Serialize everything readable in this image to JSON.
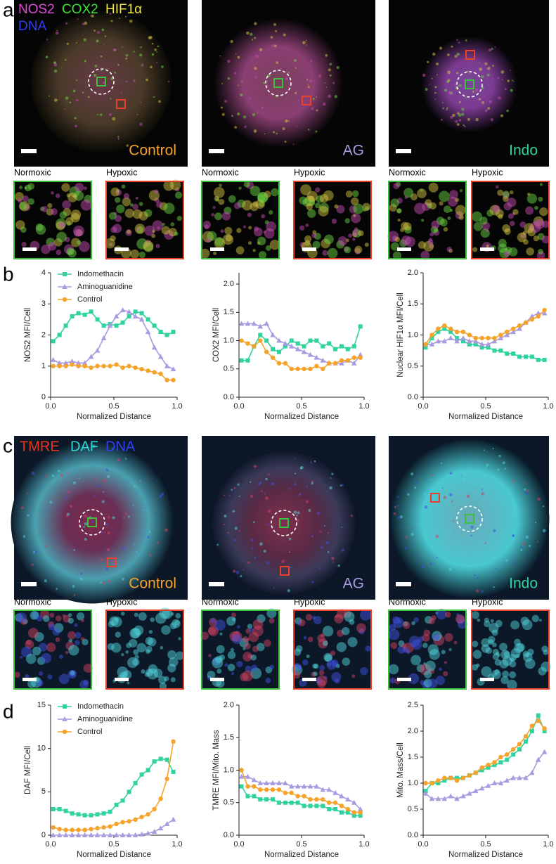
{
  "figure": {
    "panel_labels": [
      "a",
      "b",
      "c",
      "d"
    ],
    "row_a": {
      "stains": [
        {
          "text": "NOS2",
          "color": "#e04bd8"
        },
        {
          "text": "COX2",
          "color": "#3ee03a"
        },
        {
          "text": "HIF1α",
          "color": "#f2e93a"
        },
        {
          "text": "DNA",
          "color": "#2f3ff5"
        }
      ],
      "conditions": [
        {
          "text": "Control",
          "color": "#f5a32a"
        },
        {
          "text": "AG",
          "color": "#a99be0"
        },
        {
          "text": "Indo",
          "color": "#2fd3a0"
        }
      ],
      "insets": [
        "Normoxic",
        "Hypoxic"
      ]
    },
    "row_c": {
      "stains": [
        {
          "text": "TMRE",
          "color": "#e8341f"
        },
        {
          "text": "DAF",
          "color": "#2fd8d8"
        },
        {
          "text": "DNA",
          "color": "#2f3ff5"
        }
      ],
      "conditions": [
        {
          "text": "Control",
          "color": "#f5a32a"
        },
        {
          "text": "AG",
          "color": "#a99be0"
        },
        {
          "text": "Indo",
          "color": "#2fd3a0"
        }
      ],
      "insets": [
        "Normoxic",
        "Hypoxic"
      ]
    }
  },
  "chart_data": [
    {
      "type": "line",
      "ylabel": "NOS2 MFI/Cell",
      "xlabel": "Normalized Distance",
      "xlim": [
        0,
        1
      ],
      "xticks": [
        {
          "value": 0,
          "label": "0.0"
        },
        {
          "value": 0.5,
          "label": "0.5"
        },
        {
          "value": 1,
          "label": "1.0"
        }
      ],
      "ylim": [
        0,
        4
      ],
      "yticks": [
        0,
        1,
        2,
        3,
        4
      ],
      "legend": "top-left",
      "x": [
        0.02,
        0.07,
        0.12,
        0.17,
        0.22,
        0.27,
        0.32,
        0.37,
        0.42,
        0.47,
        0.52,
        0.57,
        0.62,
        0.67,
        0.72,
        0.77,
        0.82,
        0.87,
        0.92,
        0.97
      ],
      "series": [
        {
          "name": "Indomethacin",
          "color": "#2fd3a0",
          "marker": "square",
          "values": [
            1.8,
            2.0,
            2.3,
            2.6,
            2.7,
            2.65,
            2.75,
            2.5,
            2.3,
            2.35,
            2.3,
            2.4,
            2.6,
            2.75,
            2.7,
            2.5,
            2.3,
            2.1,
            2.0,
            2.1
          ]
        },
        {
          "name": "Aminoguanidine",
          "color": "#a99be0",
          "marker": "triangle",
          "values": [
            1.2,
            1.1,
            1.1,
            1.15,
            1.1,
            1.1,
            1.3,
            1.5,
            1.9,
            2.3,
            2.6,
            2.8,
            2.75,
            2.6,
            2.5,
            2.1,
            1.6,
            1.3,
            1.0,
            0.9
          ]
        },
        {
          "name": "Control",
          "color": "#f5a32a",
          "marker": "circle",
          "values": [
            1.0,
            1.0,
            1.0,
            1.05,
            1.0,
            1.0,
            0.95,
            1.0,
            1.0,
            1.0,
            1.05,
            0.95,
            1.0,
            0.95,
            0.9,
            0.85,
            0.8,
            0.75,
            0.55,
            0.55
          ]
        }
      ]
    },
    {
      "type": "line",
      "ylabel": "COX2 MFI/Cell",
      "xlabel": "Normalized Distance",
      "xlim": [
        0,
        1
      ],
      "xticks": [
        {
          "value": 0,
          "label": "0.0"
        },
        {
          "value": 0.5,
          "label": "0.5"
        },
        {
          "value": 1,
          "label": "1.0"
        }
      ],
      "ylim": [
        0,
        2.2
      ],
      "yticks": [
        {
          "value": 0,
          "label": "0.0"
        },
        {
          "value": 0.5,
          "label": "0.5"
        },
        {
          "value": 1,
          "label": "1.0"
        },
        {
          "value": 1.5,
          "label": "1.5"
        },
        {
          "value": 2,
          "label": "2.0"
        }
      ],
      "x": [
        0.02,
        0.07,
        0.12,
        0.17,
        0.22,
        0.27,
        0.32,
        0.37,
        0.42,
        0.47,
        0.52,
        0.57,
        0.62,
        0.67,
        0.72,
        0.77,
        0.82,
        0.87,
        0.92,
        0.97
      ],
      "series": [
        {
          "color": "#2fd3a0",
          "marker": "square",
          "values": [
            0.65,
            0.65,
            0.9,
            1.1,
            1.0,
            0.85,
            0.8,
            0.9,
            1.0,
            0.95,
            0.9,
            1.0,
            1.0,
            0.9,
            0.95,
            0.85,
            0.9,
            0.85,
            0.9,
            1.25
          ]
        },
        {
          "color": "#a99be0",
          "marker": "triangle",
          "values": [
            1.3,
            1.3,
            1.3,
            1.25,
            1.3,
            1.1,
            1.0,
            0.95,
            0.9,
            0.85,
            0.8,
            0.75,
            0.7,
            0.65,
            0.6,
            0.6,
            0.6,
            0.65,
            0.6,
            0.75
          ]
        },
        {
          "color": "#f5a32a",
          "marker": "circle",
          "values": [
            1.0,
            0.95,
            0.9,
            1.0,
            0.8,
            0.7,
            0.6,
            0.6,
            0.5,
            0.5,
            0.5,
            0.5,
            0.55,
            0.5,
            0.6,
            0.6,
            0.65,
            0.65,
            0.7,
            0.7
          ]
        }
      ]
    },
    {
      "type": "line",
      "ylabel": "Nuclear HIF1α MFI/Cell",
      "xlabel": "Normalized Distance",
      "xlim": [
        0,
        1
      ],
      "xticks": [
        {
          "value": 0,
          "label": "0.0"
        },
        {
          "value": 0.5,
          "label": "0.5"
        },
        {
          "value": 1,
          "label": "1.0"
        }
      ],
      "ylim": [
        0,
        2
      ],
      "yticks": [
        {
          "value": 0,
          "label": "0.0"
        },
        {
          "value": 0.5,
          "label": "0.5"
        },
        {
          "value": 1,
          "label": "1.0"
        },
        {
          "value": 1.5,
          "label": "1.5"
        },
        {
          "value": 2,
          "label": "2.0"
        }
      ],
      "x": [
        0.02,
        0.07,
        0.12,
        0.17,
        0.22,
        0.27,
        0.32,
        0.37,
        0.42,
        0.47,
        0.52,
        0.57,
        0.62,
        0.67,
        0.72,
        0.77,
        0.82,
        0.87,
        0.92,
        0.97
      ],
      "series": [
        {
          "color": "#2fd3a0",
          "marker": "square",
          "values": [
            0.8,
            0.95,
            1.05,
            1.1,
            1.05,
            0.95,
            0.9,
            0.85,
            0.85,
            0.8,
            0.8,
            0.75,
            0.75,
            0.7,
            0.7,
            0.65,
            0.65,
            0.65,
            0.6,
            0.6
          ]
        },
        {
          "color": "#a99be0",
          "marker": "triangle",
          "values": [
            0.85,
            0.85,
            0.9,
            0.9,
            0.95,
            0.9,
            0.95,
            0.9,
            0.9,
            0.85,
            0.85,
            0.9,
            0.95,
            1.0,
            1.05,
            1.1,
            1.2,
            1.3,
            1.35,
            1.35
          ]
        },
        {
          "color": "#f5a32a",
          "marker": "circle",
          "values": [
            0.85,
            1.0,
            1.1,
            1.15,
            1.1,
            1.05,
            1.05,
            1.0,
            0.95,
            0.95,
            0.95,
            0.95,
            1.0,
            1.05,
            1.1,
            1.15,
            1.2,
            1.25,
            1.3,
            1.4
          ]
        }
      ]
    },
    {
      "type": "line",
      "ylabel": "DAF MFI/Cell",
      "xlabel": "Normalized Distance",
      "xlim": [
        0,
        1
      ],
      "xticks": [
        {
          "value": 0,
          "label": "0.0"
        },
        {
          "value": 0.5,
          "label": "0.5"
        },
        {
          "value": 1,
          "label": "1.0"
        }
      ],
      "ylim": [
        0,
        15
      ],
      "yticks": [
        0,
        5,
        10,
        15
      ],
      "legend": "top-left",
      "x": [
        0.02,
        0.07,
        0.12,
        0.17,
        0.22,
        0.27,
        0.32,
        0.37,
        0.42,
        0.47,
        0.52,
        0.57,
        0.62,
        0.67,
        0.72,
        0.77,
        0.82,
        0.87,
        0.92,
        0.97
      ],
      "series": [
        {
          "name": "Indomethacin",
          "color": "#2fd3a0",
          "marker": "square",
          "values": [
            3.0,
            3.0,
            2.8,
            2.5,
            2.4,
            2.3,
            2.3,
            2.4,
            2.5,
            2.7,
            3.5,
            4.0,
            5.0,
            6.0,
            7.0,
            7.5,
            8.5,
            8.8,
            8.7,
            7.3
          ]
        },
        {
          "name": "Aminoguanidine",
          "color": "#a99be0",
          "marker": "triangle",
          "values": [
            0,
            0,
            0,
            0,
            0,
            0,
            0,
            0,
            0,
            0,
            0,
            0,
            0,
            0,
            0.1,
            0.2,
            0.4,
            0.8,
            1.3,
            1.8
          ]
        },
        {
          "name": "Control",
          "color": "#f5a32a",
          "marker": "circle",
          "values": [
            0.9,
            0.7,
            0.6,
            0.6,
            0.6,
            0.6,
            0.7,
            0.8,
            0.9,
            1.0,
            1.3,
            1.5,
            1.6,
            1.8,
            2.1,
            2.4,
            3.0,
            4.2,
            6.5,
            10.8
          ]
        }
      ]
    },
    {
      "type": "line",
      "ylabel": "TMRE MFI/Mito. Mass",
      "xlabel": "Normalized Distance",
      "xlim": [
        0,
        1
      ],
      "xticks": [
        {
          "value": 0,
          "label": "0.0"
        },
        {
          "value": 0.5,
          "label": "0.5"
        },
        {
          "value": 1,
          "label": "1.0"
        }
      ],
      "ylim": [
        0,
        2
      ],
      "yticks": [
        {
          "value": 0,
          "label": "0.0"
        },
        {
          "value": 0.5,
          "label": "0.5"
        },
        {
          "value": 1,
          "label": "1.0"
        },
        {
          "value": 1.5,
          "label": "1.5"
        },
        {
          "value": 2,
          "label": "2.0"
        }
      ],
      "x": [
        0.02,
        0.07,
        0.12,
        0.17,
        0.22,
        0.27,
        0.32,
        0.37,
        0.42,
        0.47,
        0.52,
        0.57,
        0.62,
        0.67,
        0.72,
        0.77,
        0.82,
        0.87,
        0.92,
        0.97
      ],
      "series": [
        {
          "color": "#2fd3a0",
          "marker": "square",
          "values": [
            0.75,
            0.6,
            0.6,
            0.55,
            0.55,
            0.55,
            0.5,
            0.5,
            0.5,
            0.5,
            0.45,
            0.45,
            0.45,
            0.45,
            0.4,
            0.4,
            0.35,
            0.35,
            0.3,
            0.3
          ]
        },
        {
          "color": "#a99be0",
          "marker": "triangle",
          "values": [
            0.9,
            0.9,
            0.85,
            0.8,
            0.8,
            0.8,
            0.8,
            0.8,
            0.75,
            0.75,
            0.75,
            0.75,
            0.75,
            0.7,
            0.7,
            0.65,
            0.6,
            0.55,
            0.5,
            0.4
          ]
        },
        {
          "color": "#f5a32a",
          "marker": "circle",
          "values": [
            1.0,
            0.75,
            0.75,
            0.7,
            0.7,
            0.7,
            0.7,
            0.65,
            0.65,
            0.6,
            0.6,
            0.55,
            0.55,
            0.55,
            0.5,
            0.5,
            0.45,
            0.4,
            0.35,
            0.35
          ]
        }
      ]
    },
    {
      "type": "line",
      "ylabel": "Mito. Mass/Cell",
      "xlabel": "Normalized Distance",
      "xlim": [
        0,
        1
      ],
      "xticks": [
        {
          "value": 0,
          "label": "0.0"
        },
        {
          "value": 0.5,
          "label": "0.5"
        },
        {
          "value": 1,
          "label": "1.0"
        }
      ],
      "ylim": [
        0,
        2.5
      ],
      "yticks": [
        {
          "value": 0,
          "label": "0.0"
        },
        {
          "value": 0.5,
          "label": "0.5"
        },
        {
          "value": 1,
          "label": "1.0"
        },
        {
          "value": 1.5,
          "label": "1.5"
        },
        {
          "value": 2,
          "label": "2.0"
        },
        {
          "value": 2.5,
          "label": "2.5"
        }
      ],
      "x": [
        0.02,
        0.07,
        0.12,
        0.17,
        0.22,
        0.27,
        0.32,
        0.37,
        0.42,
        0.47,
        0.52,
        0.57,
        0.62,
        0.67,
        0.72,
        0.77,
        0.82,
        0.87,
        0.92,
        0.97
      ],
      "series": [
        {
          "color": "#2fd3a0",
          "marker": "square",
          "values": [
            0.85,
            1.0,
            1.0,
            1.05,
            1.1,
            1.1,
            1.1,
            1.15,
            1.2,
            1.25,
            1.3,
            1.35,
            1.4,
            1.45,
            1.55,
            1.65,
            1.8,
            2.0,
            2.3,
            2.0
          ]
        },
        {
          "color": "#a99be0",
          "marker": "triangle",
          "values": [
            0.8,
            0.7,
            0.7,
            0.7,
            0.75,
            0.7,
            0.75,
            0.8,
            0.85,
            0.9,
            0.95,
            1.0,
            1.0,
            1.05,
            1.1,
            1.1,
            1.1,
            1.2,
            1.45,
            1.6
          ]
        },
        {
          "color": "#f5a32a",
          "marker": "circle",
          "values": [
            1.0,
            1.0,
            1.05,
            1.1,
            1.1,
            1.05,
            1.1,
            1.15,
            1.2,
            1.3,
            1.35,
            1.4,
            1.5,
            1.55,
            1.65,
            1.75,
            1.9,
            2.1,
            2.2,
            2.05
          ]
        }
      ]
    }
  ]
}
